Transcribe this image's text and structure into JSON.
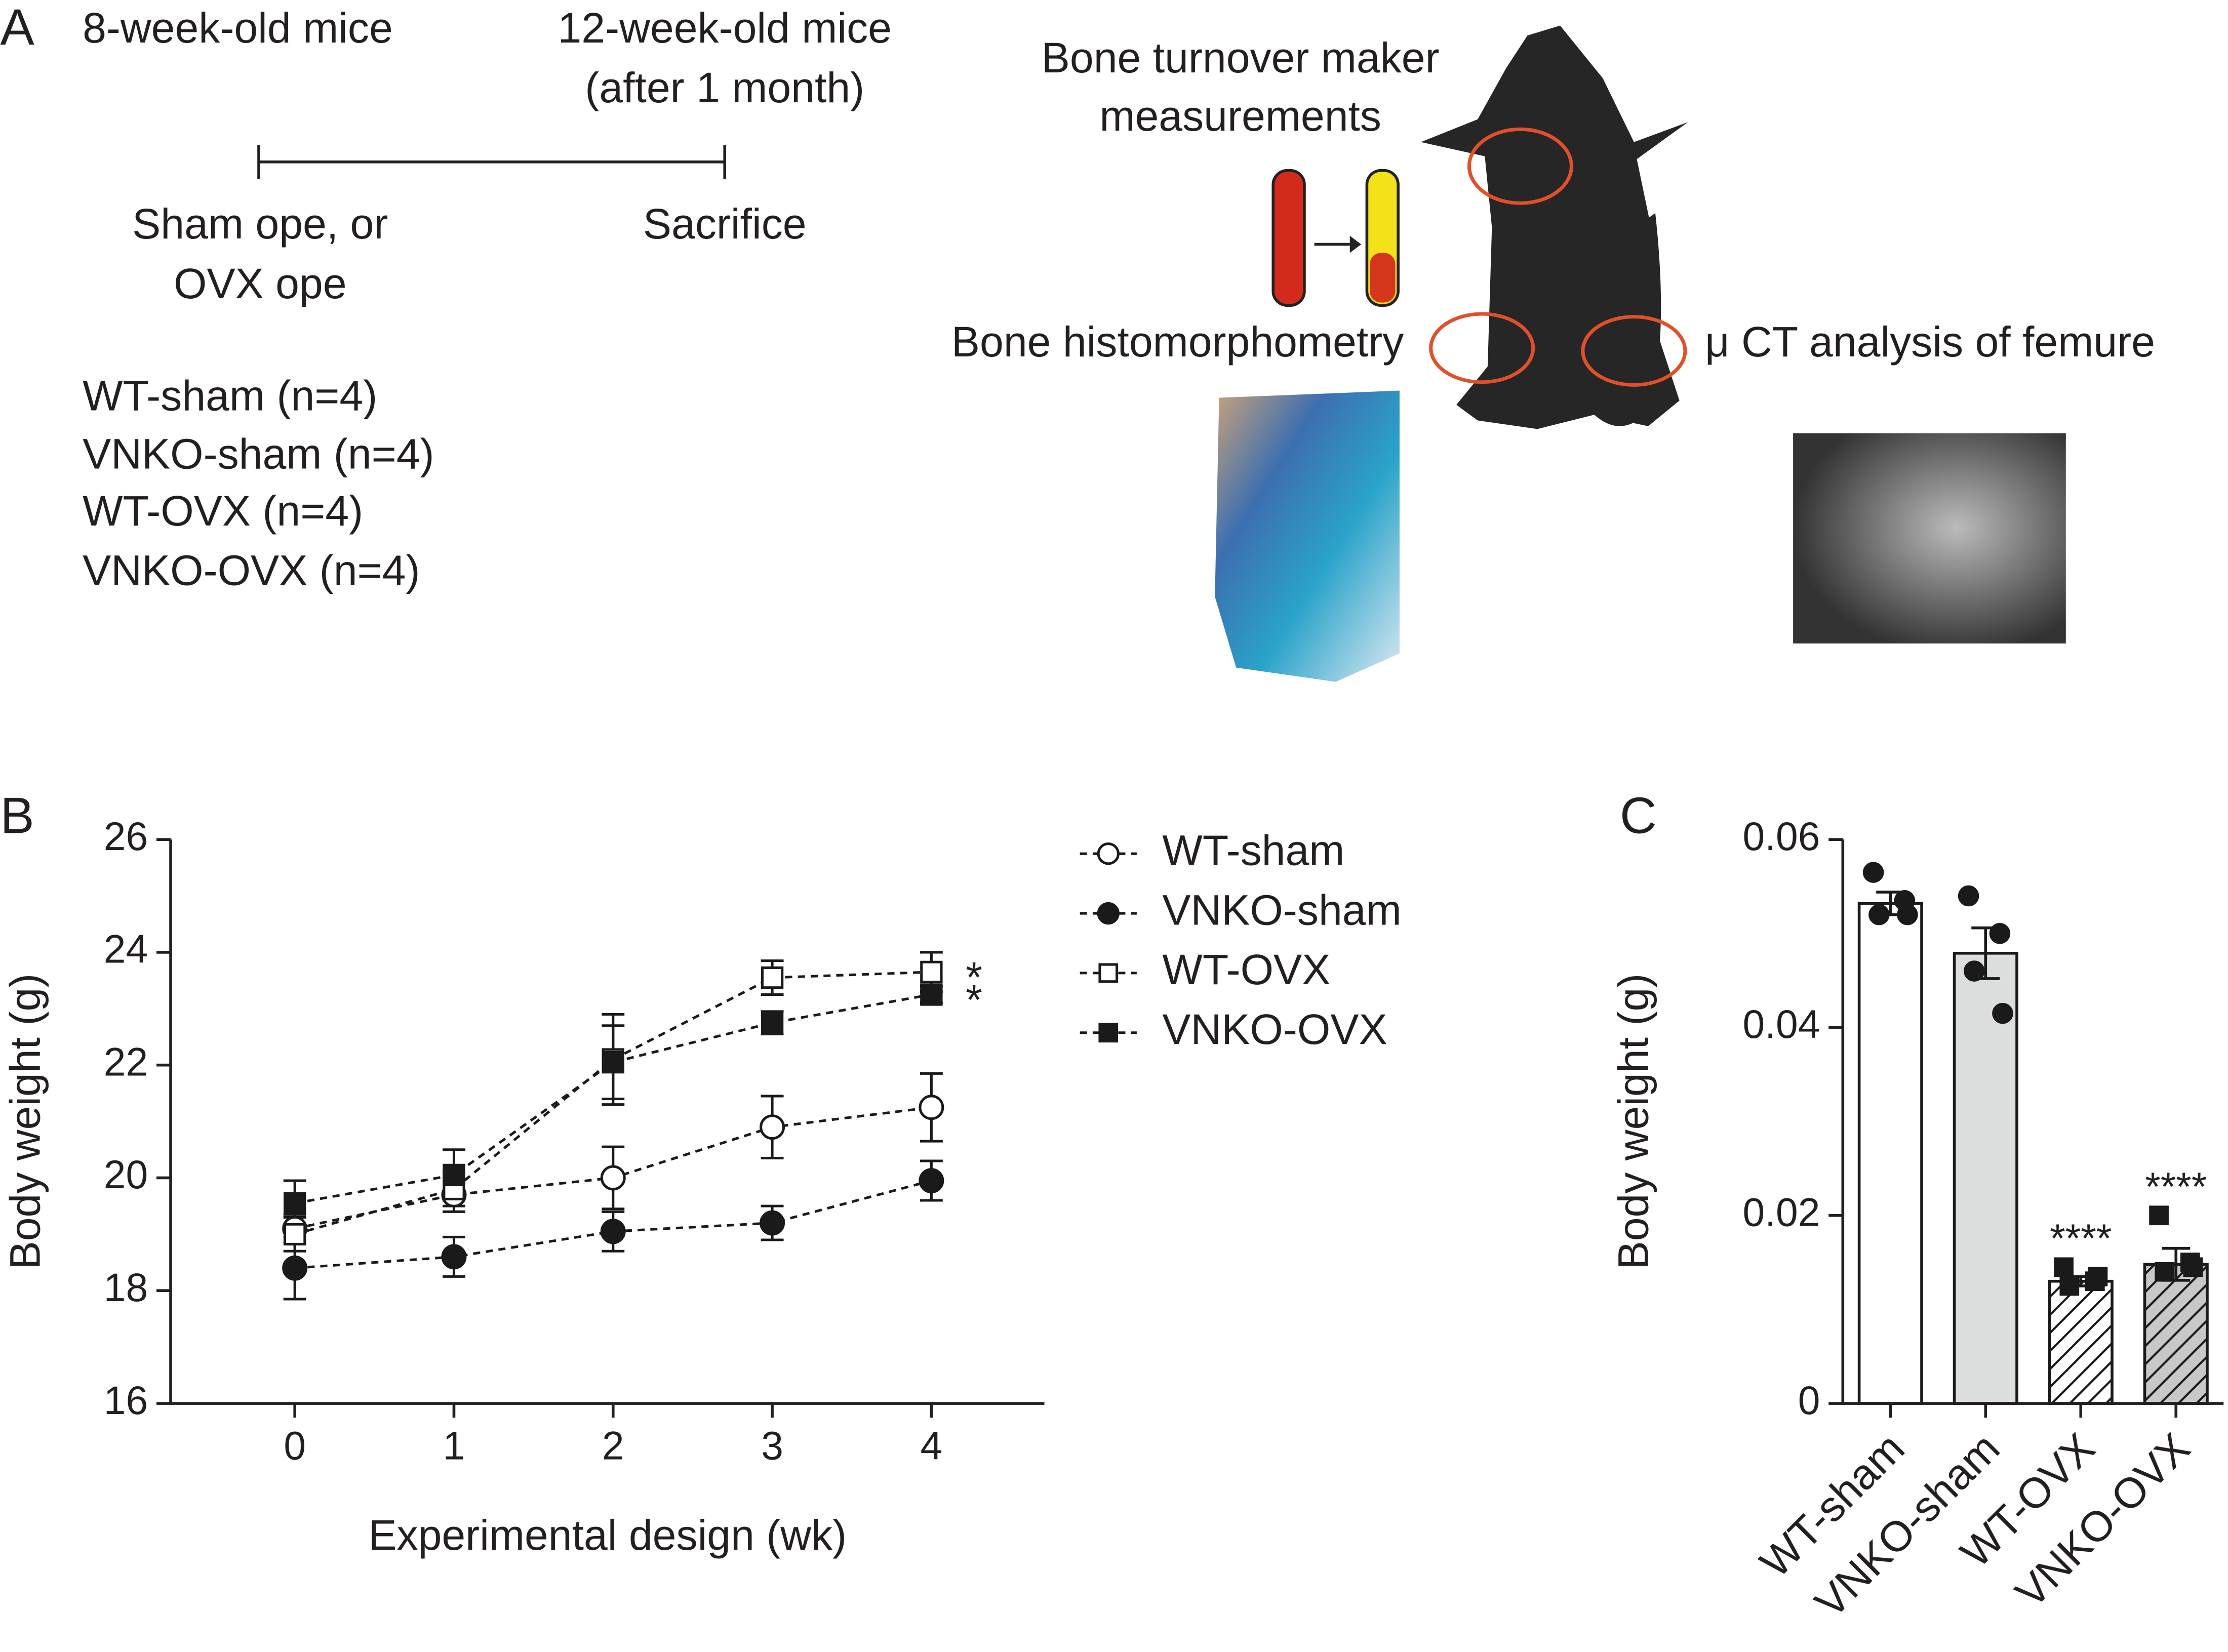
{
  "panel_labels": [
    "A",
    "B",
    "C"
  ],
  "diagram": {
    "start_label": "8-week-old mice",
    "end_label_lines": [
      "12-week-old mice",
      "(after 1 month)"
    ],
    "start_event_lines": [
      "Sham ope, or",
      "OVX ope"
    ],
    "end_event": "Sacrifice",
    "groups": [
      "WT-sham (n=4)",
      "VNKO-sham (n=4)",
      "WT-OVX (n=4)",
      "VNKO-OVX (n=4)"
    ],
    "turnover_lines": [
      "Bone turnover maker",
      "measurements"
    ],
    "histomorphometry": "Bone histomorphometry",
    "ct": "μ CT analysis of femure"
  },
  "chart_data": [
    {
      "type": "line",
      "x_label": "Experimental design (wk)",
      "y_label": "Body weight (g)",
      "x": [
        0,
        1,
        2,
        3,
        4
      ],
      "xlim": [
        -0.78,
        4.71
      ],
      "xticks": [
        0,
        1,
        2,
        3,
        4
      ],
      "ylim": [
        16,
        26
      ],
      "yticks": [
        16,
        18,
        20,
        22,
        24,
        26
      ],
      "series": [
        {
          "name": "WT-sham",
          "color": "#1a1a1a",
          "marker": "circle",
          "filled": false,
          "values": [
            19.1,
            19.7,
            20.0,
            20.9,
            21.25
          ],
          "errors": [
            0.25,
            0.3,
            0.55,
            0.55,
            0.6
          ]
        },
        {
          "name": "VNKO-sham",
          "color": "#1a1a1a",
          "marker": "circle",
          "filled": true,
          "values": [
            18.4,
            18.6,
            19.05,
            19.2,
            19.95
          ],
          "errors": [
            0.55,
            0.35,
            0.35,
            0.3,
            0.35
          ]
        },
        {
          "name": "WT-OVX",
          "color": "#1a1a1a",
          "marker": "square",
          "filled": false,
          "values": [
            19.0,
            19.8,
            22.1,
            23.55,
            23.65
          ],
          "errors": [
            0.3,
            0.3,
            0.8,
            0.3,
            0.35
          ]
        },
        {
          "name": "VNKO-OVX",
          "color": "#1a1a1a",
          "marker": "square",
          "filled": true,
          "values": [
            19.55,
            20.05,
            22.05,
            22.75,
            23.25
          ],
          "errors": [
            0.4,
            0.45,
            0.65,
            0.2,
            0.15
          ]
        }
      ],
      "annotations": [
        null,
        null,
        "*",
        "*"
      ]
    },
    {
      "type": "bar",
      "y_label": "Body weight (g)",
      "categories": [
        "WT-sham",
        "VNKO-sham",
        "WT-OVX",
        "VNKO-OVX"
      ],
      "values": [
        0.0532,
        0.0479,
        0.013,
        0.0148
      ],
      "errors": [
        0.0012,
        0.0027,
        0.0005,
        0.0017
      ],
      "points": [
        [
          0.0565,
          0.0535,
          0.052,
          0.052
        ],
        [
          0.054,
          0.05,
          0.046,
          0.0415
        ],
        [
          0.0145,
          0.013,
          0.0125,
          0.0135
        ],
        [
          0.02,
          0.015,
          0.014,
          0.0145
        ]
      ],
      "markers": [
        "circle",
        "circle",
        "square",
        "square"
      ],
      "colors": [
        "#ffffff",
        "#dcdedd",
        "#ffffff",
        "#c8c8c8"
      ],
      "hatched": [
        false,
        false,
        true,
        true
      ],
      "edge_color": "#1a1a1a",
      "ylim": [
        0,
        0.06
      ],
      "yticks": [
        0,
        0.02,
        0.04,
        0.06
      ],
      "annotations": [
        null,
        null,
        "****",
        "****"
      ]
    }
  ]
}
